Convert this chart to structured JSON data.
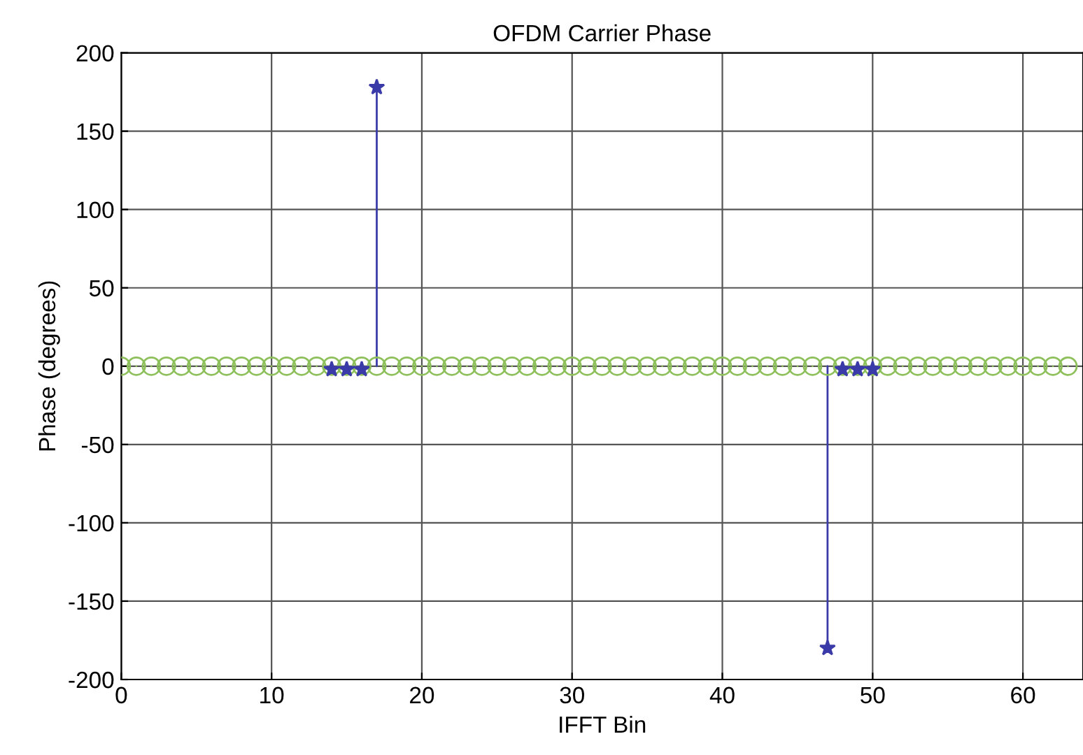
{
  "chart_data": {
    "type": "lollipop",
    "title": "OFDM Carrier Phase",
    "xlabel": "IFFT Bin",
    "ylabel": "Phase (degrees)",
    "series": [
      {
        "color": "#8dc05a",
        "marker": "circle",
        "x": [
          0,
          1,
          2,
          3,
          4,
          5,
          6,
          7,
          8,
          9,
          10,
          11,
          12,
          13,
          14,
          15,
          16,
          17,
          18,
          19,
          20,
          21,
          22,
          23,
          24,
          25,
          26,
          27,
          28,
          29,
          30,
          31,
          32,
          33,
          34,
          35,
          36,
          37,
          38,
          39,
          40,
          41,
          42,
          43,
          44,
          45,
          46,
          47,
          48,
          49,
          50,
          51,
          52,
          53,
          54,
          55,
          56,
          57,
          58,
          59,
          60,
          61,
          62,
          63
        ],
        "values": [
          0,
          0,
          0,
          0,
          0,
          0,
          0,
          0,
          0,
          0,
          0,
          0,
          0,
          0,
          0,
          0,
          0,
          0,
          0,
          0,
          0,
          0,
          0,
          0,
          0,
          0,
          0,
          0,
          0,
          0,
          0,
          0,
          0,
          0,
          0,
          0,
          0,
          0,
          0,
          0,
          0,
          0,
          0,
          0,
          0,
          0,
          0,
          0,
          0,
          0,
          0,
          0,
          0,
          0,
          0,
          0,
          0,
          0,
          0,
          0,
          0,
          0,
          0,
          0
        ]
      },
      {
        "color": "#3a3aa8",
        "marker": "star",
        "x": [
          14,
          15,
          16,
          17,
          47,
          48,
          49,
          50
        ],
        "values": [
          -2,
          -2,
          -2,
          178,
          -180,
          -2,
          -2,
          -2
        ]
      }
    ],
    "xlim": [
      0,
      64
    ],
    "xticks": [
      0,
      10,
      20,
      30,
      40,
      50,
      60
    ],
    "ylim": [
      -200,
      200
    ],
    "yticks": [
      -200,
      -150,
      -100,
      -50,
      0,
      50,
      100,
      150,
      200
    ],
    "grid": true
  }
}
